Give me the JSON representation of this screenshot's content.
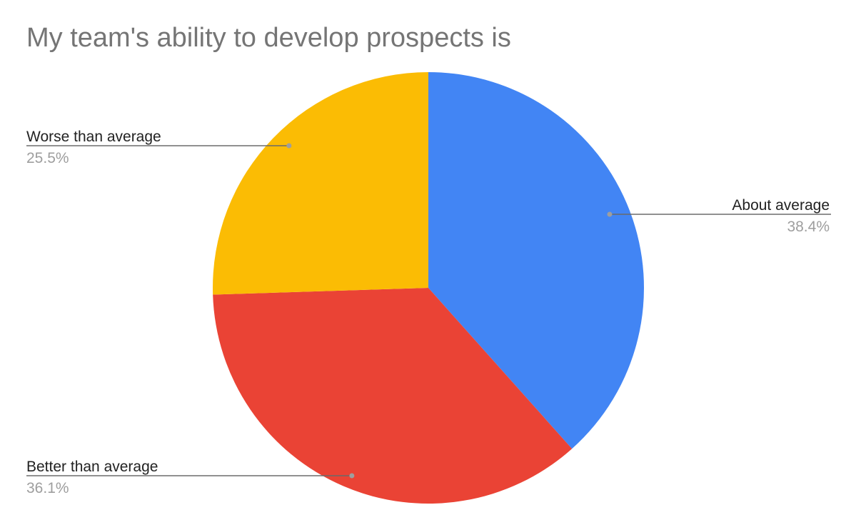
{
  "chart_data": {
    "type": "pie",
    "title": "My team's ability to develop prospects is",
    "slices": [
      {
        "label": "About average",
        "value": 38.4,
        "display": "38.4%",
        "color": "#4285f4"
      },
      {
        "label": "Better than average",
        "value": 36.1,
        "display": "36.1%",
        "color": "#ea4335"
      },
      {
        "label": "Worse than average",
        "value": 25.5,
        "display": "25.5%",
        "color": "#fbbc04"
      }
    ],
    "legend": "none"
  }
}
